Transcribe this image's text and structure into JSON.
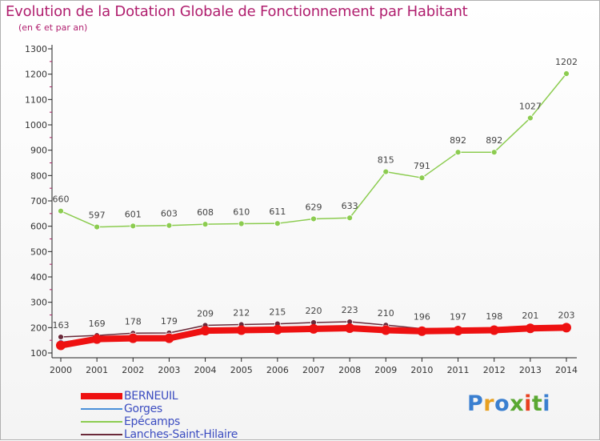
{
  "title": "Evolution de la Dotation Globale de Fonctionnement par Habitant",
  "subtitle": "(en € et par an)",
  "logo": {
    "text": "Proxiti",
    "colors": [
      "#3a7fd0",
      "#e8a020",
      "#3a7fd0",
      "#5aa832",
      "#e84020",
      "#5aa832",
      "#3a7fd0"
    ]
  },
  "chart_data": {
    "type": "line",
    "title": "Evolution de la Dotation Globale de Fonctionnement par Habitant",
    "subtitle": "(en € et par an)",
    "xlabel": "",
    "ylabel": "",
    "categories": [
      "2000",
      "2001",
      "2002",
      "2003",
      "2004",
      "2005",
      "2006",
      "2007",
      "2008",
      "2009",
      "2010",
      "2011",
      "2012",
      "2013",
      "2014"
    ],
    "ylim": [
      100,
      1300
    ],
    "yticks": [
      100,
      200,
      300,
      400,
      500,
      600,
      700,
      800,
      900,
      1000,
      1100,
      1200,
      1300
    ],
    "grid": false,
    "legend": "bottom-left",
    "series": [
      {
        "name": "BERNEUIL",
        "color": "#ee1111",
        "values": [
          130,
          155,
          158,
          158,
          188,
          190,
          192,
          195,
          198,
          190,
          186,
          188,
          190,
          197,
          200
        ],
        "labels": false
      },
      {
        "name": "Gorges",
        "color": "#4a90d9",
        "values": [
          142,
          161,
          168,
          168,
          182,
          185,
          187,
          190,
          193,
          198,
          195,
          191,
          192,
          190,
          194
        ],
        "labels": false
      },
      {
        "name": "Epécamps",
        "color": "#8ccc50",
        "values": [
          660,
          597,
          601,
          603,
          608,
          610,
          611,
          629,
          633,
          815,
          791,
          892,
          892,
          1027,
          1202
        ],
        "labels": true
      },
      {
        "name": "Lanches-Saint-Hilaire",
        "color": "#6b2a3a",
        "values": [
          163,
          169,
          178,
          179,
          209,
          212,
          215,
          220,
          223,
          210,
          196,
          197,
          198,
          201,
          203
        ],
        "labels": true
      }
    ]
  }
}
